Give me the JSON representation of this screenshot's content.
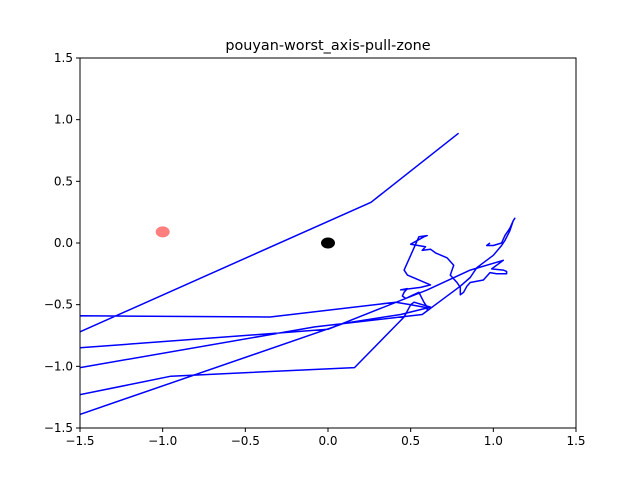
{
  "chart_data": {
    "type": "line",
    "title": "pouyan-worst_axis-pull-zone",
    "xlabel": "",
    "ylabel": "",
    "xlim": [
      -1.5,
      1.5
    ],
    "ylim": [
      -1.5,
      1.5
    ],
    "grid": false,
    "xticks": [
      -1.5,
      -1.0,
      -0.5,
      0.0,
      0.5,
      1.0,
      1.5
    ],
    "xtick_labels": [
      "−1.5",
      "−1.0",
      "−0.5",
      "0.0",
      "0.5",
      "1.0",
      "1.5"
    ],
    "yticks": [
      -1.5,
      -1.0,
      -0.5,
      0.0,
      0.5,
      1.0,
      1.5
    ],
    "ytick_labels": [
      "−1.5",
      "−1.0",
      "−0.5",
      "0.0",
      "0.5",
      "1.0",
      "1.5"
    ],
    "series": [
      {
        "color": "#0000ff",
        "x": [
          0.79,
          0.26,
          -1.5,
          -1.7,
          -1.5,
          -0.35,
          0.41,
          0.5,
          0.62,
          0.57,
          -0.08,
          -1.5,
          -1.7,
          -1.5,
          -0.95,
          0.16,
          0.46,
          0.5,
          0.52,
          0.62,
          0.44,
          0.1,
          -1.5,
          -1.7,
          -1.5,
          0.0,
          0.6,
          0.86,
          1.06,
          0.99,
          1.06,
          1.08,
          1.08,
          1.02,
          0.98,
          0.94,
          0.86,
          0.84,
          0.82,
          0.8,
          0.8,
          0.78,
          0.74,
          0.76,
          0.72,
          0.65,
          0.62,
          0.57,
          0.59,
          0.5,
          0.58,
          0.6,
          0.55,
          0.5,
          0.46,
          0.48,
          0.62,
          0.56,
          0.44,
          0.48,
          0.46,
          0.45,
          0.47,
          0.5,
          0.55,
          0.58,
          0.6,
          0.6,
          0.8,
          0.86,
          0.9,
          1.0,
          1.05,
          1.07,
          1.1,
          1.12,
          1.13,
          1.12,
          1.1,
          1.07,
          1.05,
          1.0,
          0.96,
          0.98
        ],
        "y": [
          0.89,
          0.33,
          -0.72,
          -0.85,
          -0.59,
          -0.6,
          -0.48,
          -0.5,
          -0.53,
          -0.58,
          -0.68,
          -1.01,
          -1.1,
          -1.23,
          -1.08,
          -1.01,
          -0.6,
          -0.5,
          -0.48,
          -0.52,
          -0.58,
          -0.65,
          -1.39,
          -1.42,
          -0.85,
          -0.7,
          -0.38,
          -0.22,
          -0.14,
          -0.21,
          -0.22,
          -0.23,
          -0.25,
          -0.25,
          -0.24,
          -0.3,
          -0.32,
          -0.35,
          -0.4,
          -0.42,
          -0.36,
          -0.32,
          -0.26,
          -0.18,
          -0.12,
          -0.08,
          -0.05,
          -0.06,
          -0.03,
          -0.01,
          0.05,
          0.06,
          0.05,
          -0.1,
          -0.22,
          -0.26,
          -0.34,
          -0.36,
          -0.38,
          -0.37,
          -0.4,
          -0.43,
          -0.45,
          -0.43,
          -0.4,
          -0.48,
          -0.52,
          -0.55,
          -0.35,
          -0.28,
          -0.2,
          -0.1,
          -0.02,
          0.02,
          0.1,
          0.18,
          0.2,
          0.18,
          0.12,
          0.06,
          0.0,
          -0.02,
          -0.02,
          0.0
        ]
      }
    ],
    "markers": [
      {
        "x": 0.0,
        "y": 0.0,
        "color": "#000000"
      },
      {
        "x": -1.0,
        "y": 0.09,
        "color": "#ff0000",
        "alpha": 0.5
      }
    ]
  }
}
